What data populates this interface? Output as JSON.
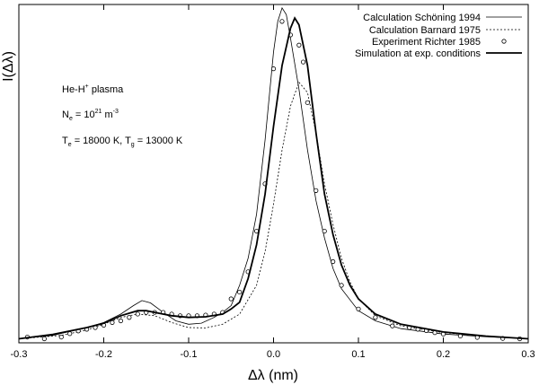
{
  "chart_data": {
    "type": "line",
    "xlabel": "Δλ (nm)",
    "ylabel": "I(Δλ)",
    "xlim": [
      -0.3,
      0.3
    ],
    "ylim": [
      0,
      1.0
    ],
    "x_ticks": [
      -0.3,
      -0.2,
      -0.1,
      0.0,
      0.1,
      0.2,
      0.3
    ],
    "x_tick_labels": [
      "-0.3",
      "-0.2",
      "-0.1",
      "0.0",
      "0.1",
      "0.2",
      "0.3"
    ],
    "y_ticks_shown": false,
    "grid": false,
    "legend_position": "top-right",
    "annotations": {
      "plasma": {
        "base": "He-H",
        "sup": "+",
        "rest": " plasma"
      },
      "density": {
        "base": "N",
        "sub": "e",
        "mid": " = 10",
        "sup": "21",
        "unit": " m",
        "unit_sup": "-3"
      },
      "temps": {
        "t1": "T",
        "t1_sub": "e",
        "t1_val": " = 18000 K, T",
        "t2_sub": "g",
        "t2_val": " = 13000 K"
      }
    },
    "series": [
      {
        "name": "Calculation Schöning 1994",
        "style": "thin-solid",
        "points": [
          [
            -0.3,
            0.012
          ],
          [
            -0.26,
            0.022
          ],
          [
            -0.22,
            0.045
          ],
          [
            -0.2,
            0.06
          ],
          [
            -0.18,
            0.085
          ],
          [
            -0.165,
            0.11
          ],
          [
            -0.155,
            0.125
          ],
          [
            -0.145,
            0.118
          ],
          [
            -0.13,
            0.09
          ],
          [
            -0.115,
            0.065
          ],
          [
            -0.1,
            0.055
          ],
          [
            -0.085,
            0.058
          ],
          [
            -0.07,
            0.075
          ],
          [
            -0.06,
            0.09
          ],
          [
            -0.05,
            0.11
          ],
          [
            -0.04,
            0.17
          ],
          [
            -0.03,
            0.25
          ],
          [
            -0.02,
            0.38
          ],
          [
            -0.01,
            0.6
          ],
          [
            0.0,
            0.86
          ],
          [
            0.005,
            0.95
          ],
          [
            0.01,
            0.99
          ],
          [
            0.015,
            0.97
          ],
          [
            0.02,
            0.9
          ],
          [
            0.03,
            0.75
          ],
          [
            0.04,
            0.57
          ],
          [
            0.05,
            0.42
          ],
          [
            0.06,
            0.31
          ],
          [
            0.07,
            0.22
          ],
          [
            0.08,
            0.16
          ],
          [
            0.1,
            0.095
          ],
          [
            0.12,
            0.065
          ],
          [
            0.15,
            0.042
          ],
          [
            0.2,
            0.026
          ],
          [
            0.25,
            0.018
          ],
          [
            0.3,
            0.012
          ]
        ]
      },
      {
        "name": "Calculation Barnard 1975",
        "style": "dotted",
        "points": [
          [
            -0.3,
            0.012
          ],
          [
            -0.25,
            0.022
          ],
          [
            -0.22,
            0.038
          ],
          [
            -0.2,
            0.055
          ],
          [
            -0.18,
            0.075
          ],
          [
            -0.16,
            0.085
          ],
          [
            -0.14,
            0.08
          ],
          [
            -0.12,
            0.06
          ],
          [
            -0.1,
            0.045
          ],
          [
            -0.08,
            0.044
          ],
          [
            -0.06,
            0.055
          ],
          [
            -0.04,
            0.085
          ],
          [
            -0.02,
            0.17
          ],
          [
            -0.01,
            0.27
          ],
          [
            0.0,
            0.41
          ],
          [
            0.01,
            0.57
          ],
          [
            0.02,
            0.7
          ],
          [
            0.03,
            0.77
          ],
          [
            0.04,
            0.74
          ],
          [
            0.05,
            0.62
          ],
          [
            0.06,
            0.47
          ],
          [
            0.07,
            0.35
          ],
          [
            0.08,
            0.25
          ],
          [
            0.09,
            0.18
          ],
          [
            0.1,
            0.13
          ],
          [
            0.12,
            0.08
          ],
          [
            0.15,
            0.05
          ],
          [
            0.2,
            0.03
          ],
          [
            0.25,
            0.02
          ],
          [
            0.3,
            0.012
          ]
        ]
      },
      {
        "name": "Experiment Richter 1985",
        "style": "circles",
        "points": [
          [
            -0.29,
            0.017
          ],
          [
            -0.27,
            0.012
          ],
          [
            -0.25,
            0.017
          ],
          [
            -0.24,
            0.027
          ],
          [
            -0.23,
            0.035
          ],
          [
            -0.22,
            0.04
          ],
          [
            -0.21,
            0.045
          ],
          [
            -0.2,
            0.052
          ],
          [
            -0.19,
            0.06
          ],
          [
            -0.18,
            0.065
          ],
          [
            -0.17,
            0.075
          ],
          [
            -0.16,
            0.085
          ],
          [
            -0.15,
            0.09
          ],
          [
            -0.14,
            0.09
          ],
          [
            -0.13,
            0.09
          ],
          [
            -0.12,
            0.085
          ],
          [
            -0.11,
            0.08
          ],
          [
            -0.1,
            0.08
          ],
          [
            -0.09,
            0.08
          ],
          [
            -0.08,
            0.082
          ],
          [
            -0.07,
            0.085
          ],
          [
            -0.06,
            0.09
          ],
          [
            -0.05,
            0.13
          ],
          [
            -0.04,
            0.15
          ],
          [
            -0.03,
            0.21
          ],
          [
            -0.02,
            0.33
          ],
          [
            -0.01,
            0.47
          ],
          [
            0.0,
            0.81
          ],
          [
            0.01,
            0.95
          ],
          [
            0.02,
            0.91
          ],
          [
            0.03,
            0.88
          ],
          [
            0.035,
            0.83
          ],
          [
            0.04,
            0.71
          ],
          [
            0.05,
            0.45
          ],
          [
            0.06,
            0.33
          ],
          [
            0.07,
            0.24
          ],
          [
            0.08,
            0.17
          ],
          [
            0.1,
            0.1
          ],
          [
            0.12,
            0.075
          ],
          [
            0.14,
            0.05
          ],
          [
            0.16,
            0.045
          ],
          [
            0.17,
            0.04
          ],
          [
            0.18,
            0.036
          ],
          [
            0.19,
            0.03
          ],
          [
            0.2,
            0.026
          ],
          [
            0.22,
            0.02
          ],
          [
            0.24,
            0.016
          ],
          [
            0.27,
            0.013
          ],
          [
            0.29,
            0.012
          ]
        ]
      },
      {
        "name": "Simulation at exp. conditions",
        "style": "thick-solid",
        "points": [
          [
            -0.3,
            0.012
          ],
          [
            -0.26,
            0.025
          ],
          [
            -0.22,
            0.045
          ],
          [
            -0.2,
            0.058
          ],
          [
            -0.18,
            0.08
          ],
          [
            -0.16,
            0.095
          ],
          [
            -0.15,
            0.095
          ],
          [
            -0.14,
            0.09
          ],
          [
            -0.12,
            0.08
          ],
          [
            -0.1,
            0.075
          ],
          [
            -0.08,
            0.077
          ],
          [
            -0.06,
            0.085
          ],
          [
            -0.05,
            0.1
          ],
          [
            -0.04,
            0.12
          ],
          [
            -0.03,
            0.19
          ],
          [
            -0.02,
            0.29
          ],
          [
            -0.01,
            0.44
          ],
          [
            0.0,
            0.64
          ],
          [
            0.01,
            0.82
          ],
          [
            0.02,
            0.93
          ],
          [
            0.025,
            0.96
          ],
          [
            0.03,
            0.94
          ],
          [
            0.04,
            0.82
          ],
          [
            0.05,
            0.62
          ],
          [
            0.06,
            0.44
          ],
          [
            0.07,
            0.32
          ],
          [
            0.08,
            0.23
          ],
          [
            0.09,
            0.17
          ],
          [
            0.1,
            0.13
          ],
          [
            0.12,
            0.085
          ],
          [
            0.15,
            0.055
          ],
          [
            0.2,
            0.032
          ],
          [
            0.25,
            0.02
          ],
          [
            0.3,
            0.012
          ]
        ]
      }
    ]
  }
}
